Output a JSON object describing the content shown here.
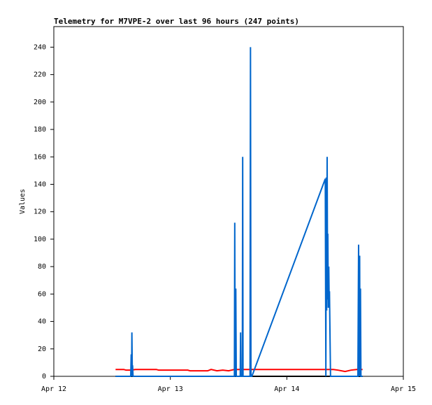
{
  "chart_data": {
    "type": "line",
    "title": "Telemetry for M7VPE-2 over last 96 hours (247 points)",
    "y_label": "Values",
    "xlim": [
      0,
      3
    ],
    "ylim": [
      0,
      255
    ],
    "xticks": [
      {
        "value": 0,
        "label": "Apr 12"
      },
      {
        "value": 1,
        "label": "Apr 13"
      },
      {
        "value": 2,
        "label": "Apr 14"
      },
      {
        "value": 3,
        "label": "Apr 15"
      }
    ],
    "yticks": [
      0,
      20,
      40,
      60,
      80,
      100,
      120,
      140,
      160,
      180,
      200,
      220,
      240
    ],
    "series": [
      {
        "name": "black",
        "color": "#000000",
        "x": [
          0.53,
          2.65
        ],
        "values": [
          0,
          0
        ]
      },
      {
        "name": "red",
        "color": "#ff0000",
        "x": [
          0.53,
          0.6,
          0.62,
          0.66,
          0.7,
          0.72,
          0.88,
          0.9,
          1.15,
          1.17,
          1.32,
          1.35,
          1.4,
          1.45,
          1.5,
          1.55,
          1.7,
          2.0,
          2.3,
          2.4,
          2.44,
          2.5,
          2.55,
          2.6,
          2.65
        ],
        "values": [
          5,
          5,
          4.5,
          4.5,
          5,
          5,
          5,
          4.5,
          4.5,
          4,
          4,
          5,
          4,
          4.5,
          4,
          5,
          5,
          5,
          5,
          5,
          4.5,
          3.5,
          4.5,
          5,
          5
        ]
      },
      {
        "name": "blue",
        "color": "#0066cc",
        "x": [
          0.53,
          0.66,
          0.664,
          0.668,
          0.67,
          0.674,
          0.676,
          0.68,
          1.55,
          1.553,
          1.556,
          1.562,
          1.566,
          1.6,
          1.603,
          1.606,
          1.618,
          1.621,
          1.624,
          1.684,
          1.688,
          1.692,
          1.7,
          2.33,
          2.335,
          2.338,
          2.342,
          2.346,
          2.35,
          2.352,
          2.356,
          2.36,
          2.363,
          2.366,
          2.372,
          2.375,
          2.61,
          2.616,
          2.62,
          2.625,
          2.628,
          2.632,
          2.636,
          2.65
        ],
        "values": [
          0,
          0,
          16,
          0,
          32,
          0,
          8,
          0,
          0,
          112,
          0,
          64,
          0,
          0,
          32,
          0,
          0,
          160,
          0,
          0,
          240,
          0,
          0,
          144,
          0,
          145,
          48,
          160,
          56,
          104,
          50,
          80,
          58,
          62,
          20,
          0,
          0,
          96,
          0,
          88,
          0,
          64,
          0,
          0
        ]
      }
    ]
  }
}
